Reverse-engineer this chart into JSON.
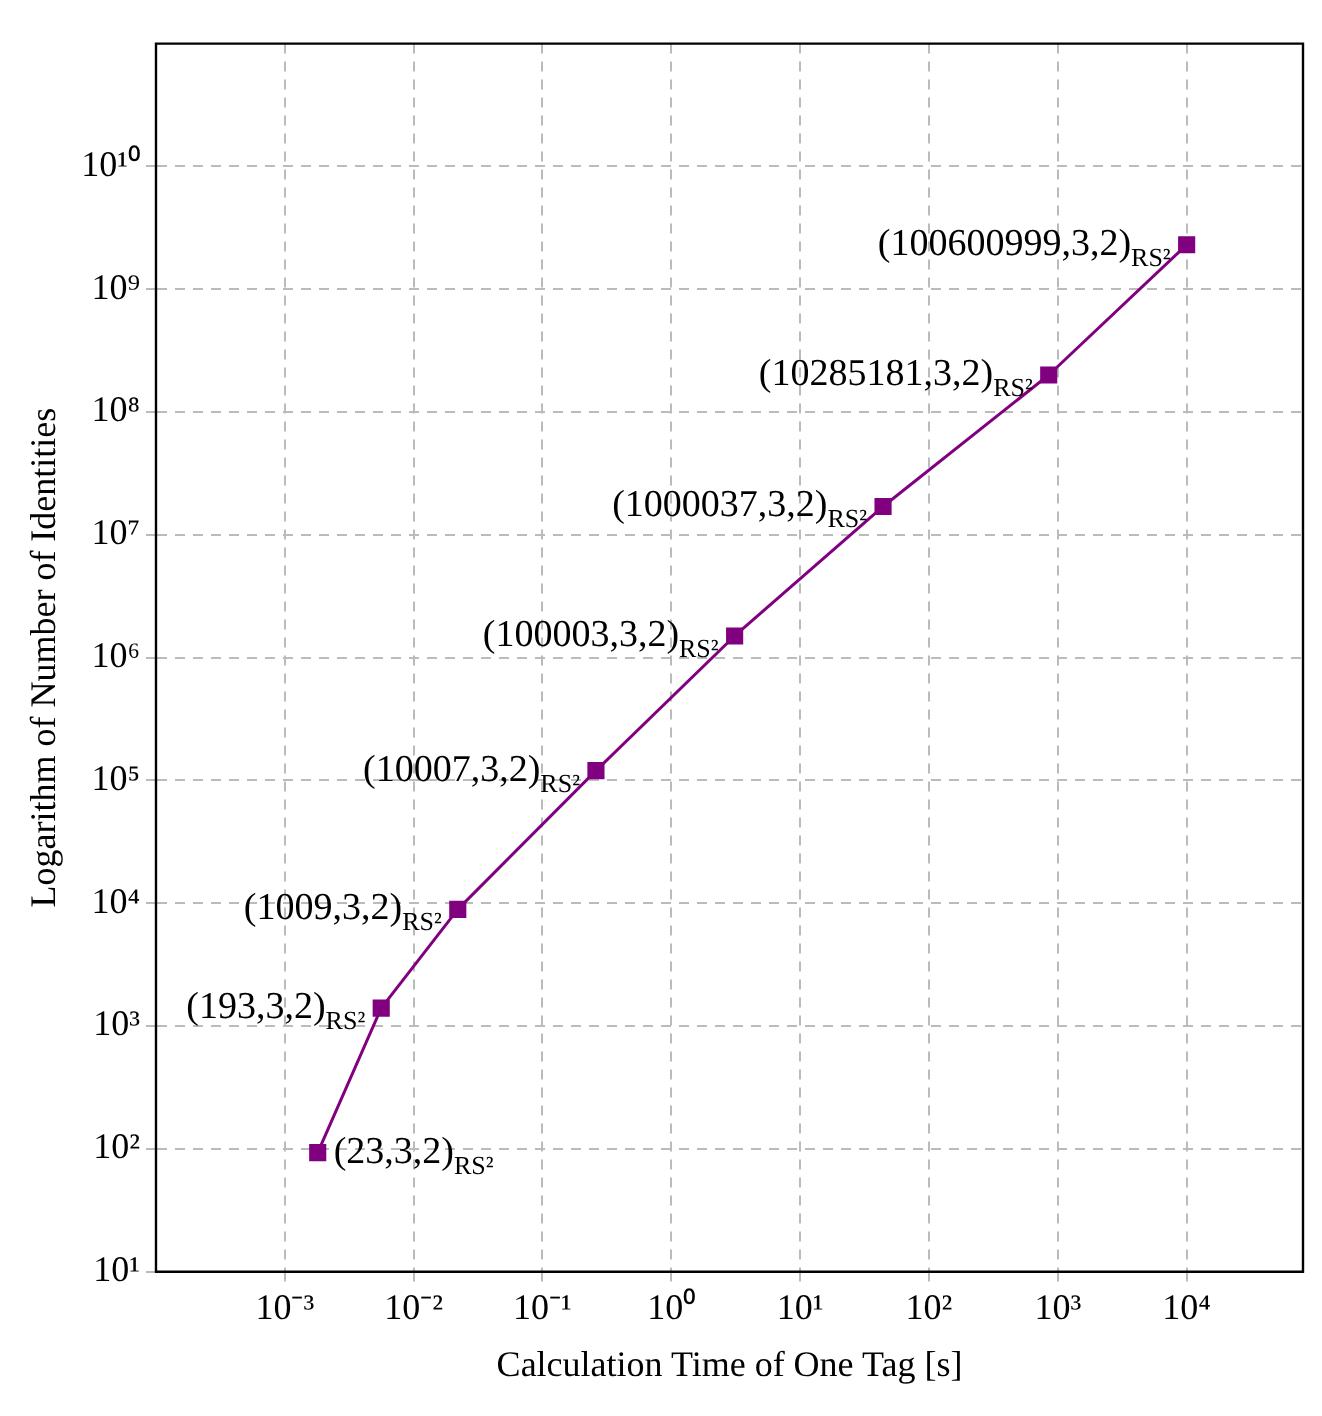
{
  "chart_data": {
    "type": "line",
    "xlabel": "Calculation Time of One Tag [s]",
    "ylabel": "Logarithm of Number of Identities",
    "log": "xy",
    "grid": true,
    "marker": "square",
    "line_style": "solid",
    "x": [
      0.0018,
      0.0056,
      0.022,
      0.26,
      3.1,
      44,
      850,
      10000
    ],
    "series": [
      {
        "color": "#800080",
        "values": [
          93,
          1400,
          8900,
          120000,
          1500000,
          17000000,
          200000000,
          2300000000
        ],
        "value_labels": [
          "(23,3,2)$_{RS²}$",
          "(193,3,2)$_{RS²}$",
          "(1009,3,2)$_{RS²}$",
          "(10007,3,2)$_{RS²}$",
          "(100003,3,2)$_{RS²}$",
          "(1000037,3,2)$_{RS²}$",
          "(10285181,3,2)$_{RS²}$",
          "(100600999,3,2)$_{RS²}$"
        ]
      }
    ],
    "xlim": [
      0.0001,
      80000
    ],
    "xticks": [
      {
        "value": 0.001,
        "label": "10⁻³"
      },
      {
        "value": 0.01,
        "label": "10⁻²"
      },
      {
        "value": 0.1,
        "label": "10⁻¹"
      },
      {
        "value": 1,
        "label": "10⁰"
      },
      {
        "value": 10,
        "label": "10¹"
      },
      {
        "value": 100,
        "label": "10²"
      },
      {
        "value": 1000,
        "label": "10³"
      },
      {
        "value": 10000,
        "label": "10⁴"
      }
    ],
    "ylim": [
      10,
      100000000000
    ],
    "yticks": [
      {
        "value": 10,
        "label": "10¹"
      },
      {
        "value": 100,
        "label": "10²"
      },
      {
        "value": 1000,
        "label": "10³"
      },
      {
        "value": 10000,
        "label": "10⁴"
      },
      {
        "value": 100000,
        "label": "10⁵"
      },
      {
        "value": 1000000,
        "label": "10⁶"
      },
      {
        "value": 10000000,
        "label": "10⁷"
      },
      {
        "value": 100000000,
        "label": "10⁸"
      },
      {
        "value": 1000000000,
        "label": "10⁹"
      },
      {
        "value": 10000000000,
        "label": "10¹⁰"
      }
    ]
  }
}
